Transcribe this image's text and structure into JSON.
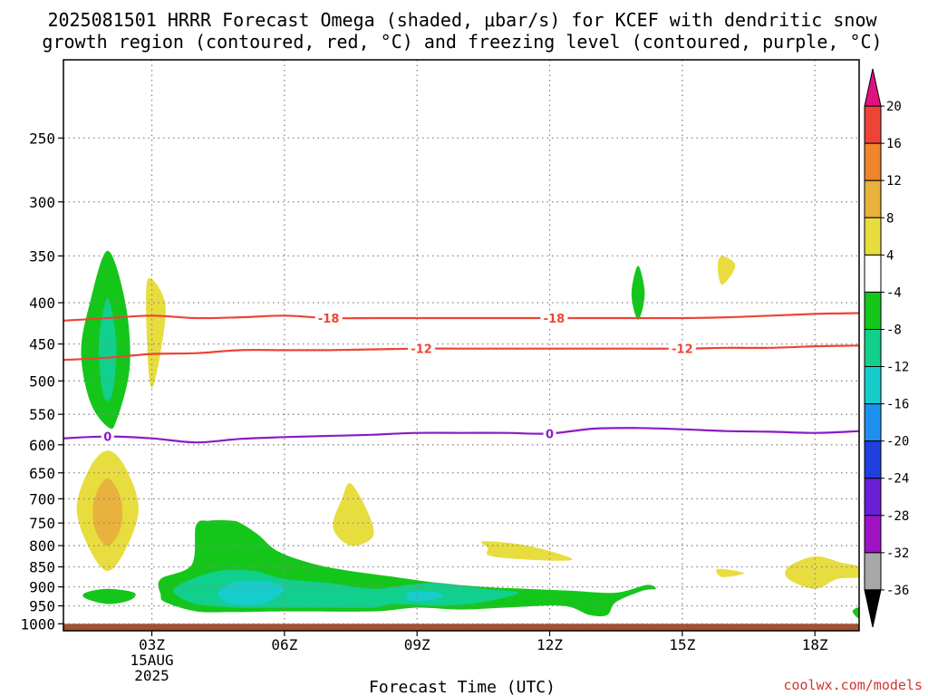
{
  "title_line1": "2025081501 HRRR Forecast Omega (shaded, μbar/s) for KCEF with dendritic snow",
  "title_line2": "growth region (contoured, red, °C) and freezing level (contoured, purple, °C)",
  "xlabel": "Forecast Time (UTC)",
  "credit": "coolwx.com/models",
  "colors": {
    "dgz": "#ee4436",
    "freezing": "#8b1bc4",
    "ground": "#a05232",
    "grid": "#888888"
  },
  "chart_data": {
    "type": "heatmap",
    "title": "2025081501 HRRR Forecast Omega (shaded, μbar/s) for KCEF with dendritic snow growth region (contoured, red, °C) and freezing level (contoured, purple, °C)",
    "xlabel": "Forecast Time (UTC)",
    "ylabel": "",
    "x_units": "forecast hour (UTC)",
    "xlim": [
      1,
      19
    ],
    "y_units": "hPa",
    "ylim": [
      1020,
      200
    ],
    "y_scale": "log",
    "grid": true,
    "x_ticks": [
      {
        "hour": 3,
        "label": "03Z",
        "date": "15AUG",
        "year": "2025"
      },
      {
        "hour": 6,
        "label": "06Z"
      },
      {
        "hour": 9,
        "label": "09Z"
      },
      {
        "hour": 12,
        "label": "12Z"
      },
      {
        "hour": 15,
        "label": "15Z"
      },
      {
        "hour": 18,
        "label": "18Z"
      }
    ],
    "y_ticks": [
      {
        "p": 250,
        "label": "250"
      },
      {
        "p": 300,
        "label": "300"
      },
      {
        "p": 350,
        "label": "350"
      },
      {
        "p": 400,
        "label": "400"
      },
      {
        "p": 450,
        "label": "450"
      },
      {
        "p": 500,
        "label": "500"
      },
      {
        "p": 550,
        "label": "550"
      },
      {
        "p": 600,
        "label": "600"
      },
      {
        "p": 650,
        "label": "650"
      },
      {
        "p": 700,
        "label": "700"
      },
      {
        "p": 750,
        "label": "750"
      },
      {
        "p": 800,
        "label": "800"
      },
      {
        "p": 850,
        "label": "850"
      },
      {
        "p": 900,
        "label": "900"
      },
      {
        "p": 950,
        "label": "950"
      },
      {
        "p": 1000,
        "label": "1000"
      }
    ],
    "colorbar": {
      "bins": [
        {
          "from": 20,
          "to": 30,
          "color": "#e0127f",
          "label": "20",
          "arrow": true
        },
        {
          "from": 16,
          "to": 20,
          "color": "#ee4436",
          "label": "16"
        },
        {
          "from": 12,
          "to": 16,
          "color": "#ef852d",
          "label": "12"
        },
        {
          "from": 8,
          "to": 12,
          "color": "#e9b23d",
          "label": "8"
        },
        {
          "from": 4,
          "to": 8,
          "color": "#e8dd3f",
          "label": "4"
        },
        {
          "from": -4,
          "to": 4,
          "color": "#ffffff",
          "label": "-4"
        },
        {
          "from": -8,
          "to": -4,
          "color": "#14c61a",
          "label": "-8"
        },
        {
          "from": -12,
          "to": -8,
          "color": "#11cf8c",
          "label": "-12"
        },
        {
          "from": -16,
          "to": -12,
          "color": "#16cdcc",
          "label": "-16"
        },
        {
          "from": -20,
          "to": -16,
          "color": "#1e90ee",
          "label": "-20"
        },
        {
          "from": -24,
          "to": -20,
          "color": "#1f3fe0",
          "label": "-24"
        },
        {
          "from": -28,
          "to": -24,
          "color": "#6a1fd6",
          "label": "-28"
        },
        {
          "from": -32,
          "to": -28,
          "color": "#a012c4",
          "label": "-32"
        },
        {
          "from": -36,
          "to": -32,
          "color": "#a8a8a8",
          "label": "-36"
        },
        {
          "from": -46,
          "to": -36,
          "color": "#000000",
          "label": "",
          "arrow": true
        }
      ]
    },
    "omega_regions": [
      {
        "level": 4,
        "color": "#e8dd3f",
        "points": [
          [
            2.0,
            610
          ],
          [
            2.4,
            640
          ],
          [
            2.7,
            720
          ],
          [
            2.4,
            810
          ],
          [
            2.0,
            860
          ],
          [
            1.6,
            810
          ],
          [
            1.3,
            720
          ],
          [
            1.6,
            640
          ]
        ]
      },
      {
        "level": 8,
        "color": "#e9b23d",
        "points": [
          [
            2.0,
            660
          ],
          [
            2.3,
            700
          ],
          [
            2.3,
            760
          ],
          [
            2.0,
            800
          ],
          [
            1.7,
            760
          ],
          [
            1.7,
            700
          ]
        ]
      },
      {
        "level": 4,
        "color": "#e8dd3f",
        "points": [
          [
            2.9,
            375
          ],
          [
            3.3,
            400
          ],
          [
            3.2,
            460
          ],
          [
            3.0,
            510
          ],
          [
            2.9,
            460
          ]
        ]
      },
      {
        "level": 4,
        "color": "#e8dd3f",
        "points": [
          [
            7.5,
            670
          ],
          [
            7.9,
            730
          ],
          [
            8.0,
            780
          ],
          [
            7.5,
            800
          ],
          [
            7.1,
            760
          ],
          [
            7.3,
            700
          ]
        ]
      },
      {
        "level": 4,
        "color": "#e8dd3f",
        "points": [
          [
            10.5,
            790
          ],
          [
            11.5,
            800
          ],
          [
            12.5,
            830
          ],
          [
            12.0,
            835
          ],
          [
            10.7,
            825
          ],
          [
            10.6,
            805
          ]
        ]
      },
      {
        "level": 4,
        "color": "#e8dd3f",
        "points": [
          [
            15.9,
            350
          ],
          [
            16.2,
            360
          ],
          [
            15.9,
            380
          ],
          [
            15.8,
            360
          ]
        ]
      },
      {
        "level": 4,
        "color": "#e8dd3f",
        "points": [
          [
            15.8,
            855
          ],
          [
            16.4,
            865
          ],
          [
            15.9,
            875
          ]
        ]
      },
      {
        "level": 4,
        "color": "#e8dd3f",
        "points": [
          [
            17.4,
            850
          ],
          [
            18.0,
            825
          ],
          [
            18.6,
            840
          ],
          [
            19.0,
            850
          ],
          [
            19.0,
            875
          ],
          [
            18.5,
            880
          ],
          [
            18.0,
            905
          ],
          [
            17.4,
            880
          ]
        ]
      },
      {
        "level": -4,
        "color": "#14c61a",
        "points": [
          [
            2.0,
            345
          ],
          [
            2.4,
            400
          ],
          [
            2.5,
            480
          ],
          [
            2.2,
            560
          ],
          [
            2.0,
            570
          ],
          [
            1.6,
            530
          ],
          [
            1.4,
            460
          ],
          [
            1.6,
            400
          ]
        ]
      },
      {
        "level": -8,
        "color": "#11cf8c",
        "points": [
          [
            2.0,
            395
          ],
          [
            2.2,
            450
          ],
          [
            2.1,
            520
          ],
          [
            1.9,
            520
          ],
          [
            1.8,
            450
          ]
        ]
      },
      {
        "level": -4,
        "color": "#14c61a",
        "points": [
          [
            1.5,
            915
          ],
          [
            2.0,
            905
          ],
          [
            2.6,
            915
          ],
          [
            2.5,
            935
          ],
          [
            2.0,
            945
          ],
          [
            1.5,
            930
          ]
        ]
      },
      {
        "level": -4,
        "color": "#14c61a",
        "points": [
          [
            3.2,
            880
          ],
          [
            3.9,
            845
          ],
          [
            4.0,
            755
          ],
          [
            4.3,
            745
          ],
          [
            4.8,
            745
          ],
          [
            5.0,
            750
          ],
          [
            5.4,
            775
          ],
          [
            5.8,
            810
          ],
          [
            6.4,
            835
          ],
          [
            7.2,
            855
          ],
          [
            8.5,
            875
          ],
          [
            9.5,
            890
          ],
          [
            10.5,
            900
          ],
          [
            11.5,
            905
          ],
          [
            12.5,
            910
          ],
          [
            13.5,
            915
          ],
          [
            14.2,
            895
          ],
          [
            14.4,
            905
          ],
          [
            14.1,
            910
          ],
          [
            13.5,
            940
          ],
          [
            13.3,
            975
          ],
          [
            12.9,
            975
          ],
          [
            12.3,
            950
          ],
          [
            11.0,
            955
          ],
          [
            10.0,
            960
          ],
          [
            9.0,
            955
          ],
          [
            8.0,
            965
          ],
          [
            6.0,
            965
          ],
          [
            4.8,
            967
          ],
          [
            4.0,
            965
          ],
          [
            3.3,
            940
          ],
          [
            3.2,
            920
          ]
        ]
      },
      {
        "level": -8,
        "color": "#11cf8c",
        "points": [
          [
            3.7,
            890
          ],
          [
            4.5,
            860
          ],
          [
            5.3,
            860
          ],
          [
            6.0,
            880
          ],
          [
            7.0,
            890
          ],
          [
            8.0,
            905
          ],
          [
            8.8,
            895
          ],
          [
            9.5,
            890
          ],
          [
            10.5,
            905
          ],
          [
            11.3,
            915
          ],
          [
            10.5,
            940
          ],
          [
            9.5,
            950
          ],
          [
            8.5,
            945
          ],
          [
            8.0,
            955
          ],
          [
            7.0,
            955
          ],
          [
            6.0,
            955
          ],
          [
            5.0,
            955
          ],
          [
            4.0,
            945
          ],
          [
            3.5,
            915
          ]
        ]
      },
      {
        "level": -12,
        "color": "#16cdcc",
        "points": [
          [
            4.8,
            890
          ],
          [
            5.5,
            885
          ],
          [
            6.0,
            905
          ],
          [
            5.5,
            945
          ],
          [
            4.8,
            945
          ],
          [
            4.5,
            920
          ]
        ]
      },
      {
        "level": -12,
        "color": "#16cdcc",
        "points": [
          [
            8.8,
            915
          ],
          [
            9.3,
            912
          ],
          [
            9.6,
            922
          ],
          [
            9.3,
            935
          ],
          [
            8.8,
            935
          ]
        ]
      },
      {
        "level": -4,
        "color": "#14c61a",
        "points": [
          [
            14.0,
            360
          ],
          [
            14.15,
            390
          ],
          [
            14.0,
            420
          ],
          [
            13.85,
            390
          ]
        ]
      },
      {
        "level": -4,
        "color": "#14c61a",
        "points": [
          [
            18.85,
            965
          ],
          [
            19.0,
            955
          ],
          [
            19.0,
            985
          ]
        ]
      }
    ],
    "contours": [
      {
        "name": "-18",
        "label": "-18",
        "color": "#ee4436",
        "points": [
          [
            1,
            421
          ],
          [
            2,
            418
          ],
          [
            3,
            415
          ],
          [
            4,
            418
          ],
          [
            5,
            417
          ],
          [
            6,
            415
          ],
          [
            7,
            418
          ],
          [
            8,
            418
          ],
          [
            9,
            418
          ],
          [
            10,
            418
          ],
          [
            11,
            418
          ],
          [
            12,
            418
          ],
          [
            13,
            418
          ],
          [
            14,
            418
          ],
          [
            15,
            418
          ],
          [
            16,
            417
          ],
          [
            17,
            415
          ],
          [
            18,
            413
          ],
          [
            19,
            412
          ]
        ],
        "label_x": [
          7.0,
          12.1
        ]
      },
      {
        "name": "-12",
        "label": "-12",
        "color": "#ee4436",
        "points": [
          [
            1,
            471
          ],
          [
            2,
            468
          ],
          [
            3,
            463
          ],
          [
            4,
            462
          ],
          [
            5,
            458
          ],
          [
            6,
            458
          ],
          [
            7,
            458
          ],
          [
            8,
            457
          ],
          [
            9,
            456
          ],
          [
            10,
            456
          ],
          [
            11,
            456
          ],
          [
            12,
            456
          ],
          [
            13,
            456
          ],
          [
            14,
            456
          ],
          [
            15,
            456
          ],
          [
            16,
            455
          ],
          [
            17,
            455
          ],
          [
            18,
            453
          ],
          [
            19,
            452
          ]
        ],
        "label_x": [
          9.1,
          15.0
        ]
      },
      {
        "name": "0",
        "label": "0",
        "color": "#8b1bc4",
        "points": [
          [
            1,
            589
          ],
          [
            2,
            586
          ],
          [
            3,
            589
          ],
          [
            4,
            596
          ],
          [
            5,
            590
          ],
          [
            6,
            587
          ],
          [
            7,
            585
          ],
          [
            8,
            583
          ],
          [
            9,
            580
          ],
          [
            10,
            580
          ],
          [
            11,
            580
          ],
          [
            12,
            581
          ],
          [
            13,
            573
          ],
          [
            14,
            572
          ],
          [
            15,
            574
          ],
          [
            16,
            577
          ],
          [
            17,
            578
          ],
          [
            18,
            580
          ],
          [
            19,
            577
          ]
        ],
        "label_x": [
          2.0,
          12.0
        ]
      }
    ],
    "ground_p": [
      1000,
      1020
    ]
  }
}
